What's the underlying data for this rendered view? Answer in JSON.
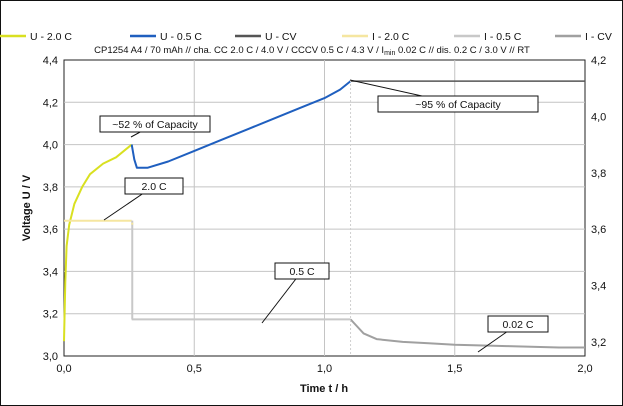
{
  "chart_data": {
    "type": "line",
    "subtitle": {
      "before_sub": "CP1254 A4 / 70 mAh // cha. CC 2.0 C / 4.0 V / CCCV 0.5 C / 4.3 V / I",
      "sub": "min",
      "after_sub": " 0.02 C // dis. 0.2 C / 3.0 V // RT"
    },
    "xlabel": "Time t / h",
    "ylabel": "Voltage U / V",
    "xlim": [
      0,
      2
    ],
    "ylim_left": [
      3.0,
      4.4
    ],
    "ylim_right": [
      3.15,
      4.2
    ],
    "x_ticks": [
      "0,0",
      "0,5",
      "1,0",
      "1,5",
      "2,0"
    ],
    "y_ticks_left": [
      "3,0",
      "3,2",
      "3,4",
      "3,6",
      "3,8",
      "4,0",
      "4,2",
      "4,4"
    ],
    "y_ticks_right": [
      "3,2",
      "3,4",
      "3,6",
      "3,8",
      "4,0",
      "4,2"
    ],
    "grid": true,
    "legend_position": "top",
    "series": [
      {
        "name": "U - 2.0 C",
        "color": "#d9e021",
        "axis": "left",
        "x": [
          0,
          0.005,
          0.01,
          0.02,
          0.04,
          0.07,
          0.1,
          0.15,
          0.2,
          0.25,
          0.26
        ],
        "y": [
          3.07,
          3.35,
          3.52,
          3.62,
          3.72,
          3.8,
          3.86,
          3.91,
          3.94,
          3.99,
          4.0
        ]
      },
      {
        "name": "U - 0.5 C",
        "color": "#1f5fbf",
        "axis": "left",
        "x": [
          0.26,
          0.27,
          0.28,
          0.32,
          0.4,
          0.5,
          0.6,
          0.7,
          0.8,
          0.9,
          1.0,
          1.06,
          1.1
        ],
        "y": [
          4.0,
          3.93,
          3.89,
          3.89,
          3.92,
          3.97,
          4.02,
          4.07,
          4.12,
          4.17,
          4.22,
          4.26,
          4.3
        ]
      },
      {
        "name": "U - CV",
        "color": "#555555",
        "axis": "left",
        "x": [
          1.1,
          1.3,
          1.5,
          1.7,
          1.9,
          2.0
        ],
        "y": [
          4.3,
          4.3,
          4.3,
          4.3,
          4.3,
          4.3
        ]
      },
      {
        "name": "I - 2.0 C",
        "color": "#f5e6a0",
        "axis": "right",
        "x": [
          0,
          0.26
        ],
        "y": [
          3.63,
          3.63
        ]
      },
      {
        "name": "I - 0.5 C",
        "color": "#c8c8c8",
        "axis": "right",
        "x": [
          0.26,
          0.27,
          0.5,
          0.75,
          1.0,
          1.1
        ],
        "y": [
          3.28,
          3.28,
          3.28,
          3.28,
          3.28,
          3.28
        ]
      },
      {
        "name": "I - CV",
        "color": "#a0a0a0",
        "axis": "right",
        "x": [
          1.1,
          1.12,
          1.15,
          1.2,
          1.3,
          1.4,
          1.5,
          1.7,
          1.9,
          2.0
        ],
        "y": [
          3.28,
          3.26,
          3.23,
          3.21,
          3.2,
          3.195,
          3.19,
          3.185,
          3.18,
          3.18
        ]
      }
    ],
    "annotations": [
      {
        "text": "~52 % of Capacity"
      },
      {
        "text": "2.0 C"
      },
      {
        "text": "~95 % of Capacity"
      },
      {
        "text": "0.5 C"
      },
      {
        "text": "0.02 C"
      }
    ]
  }
}
